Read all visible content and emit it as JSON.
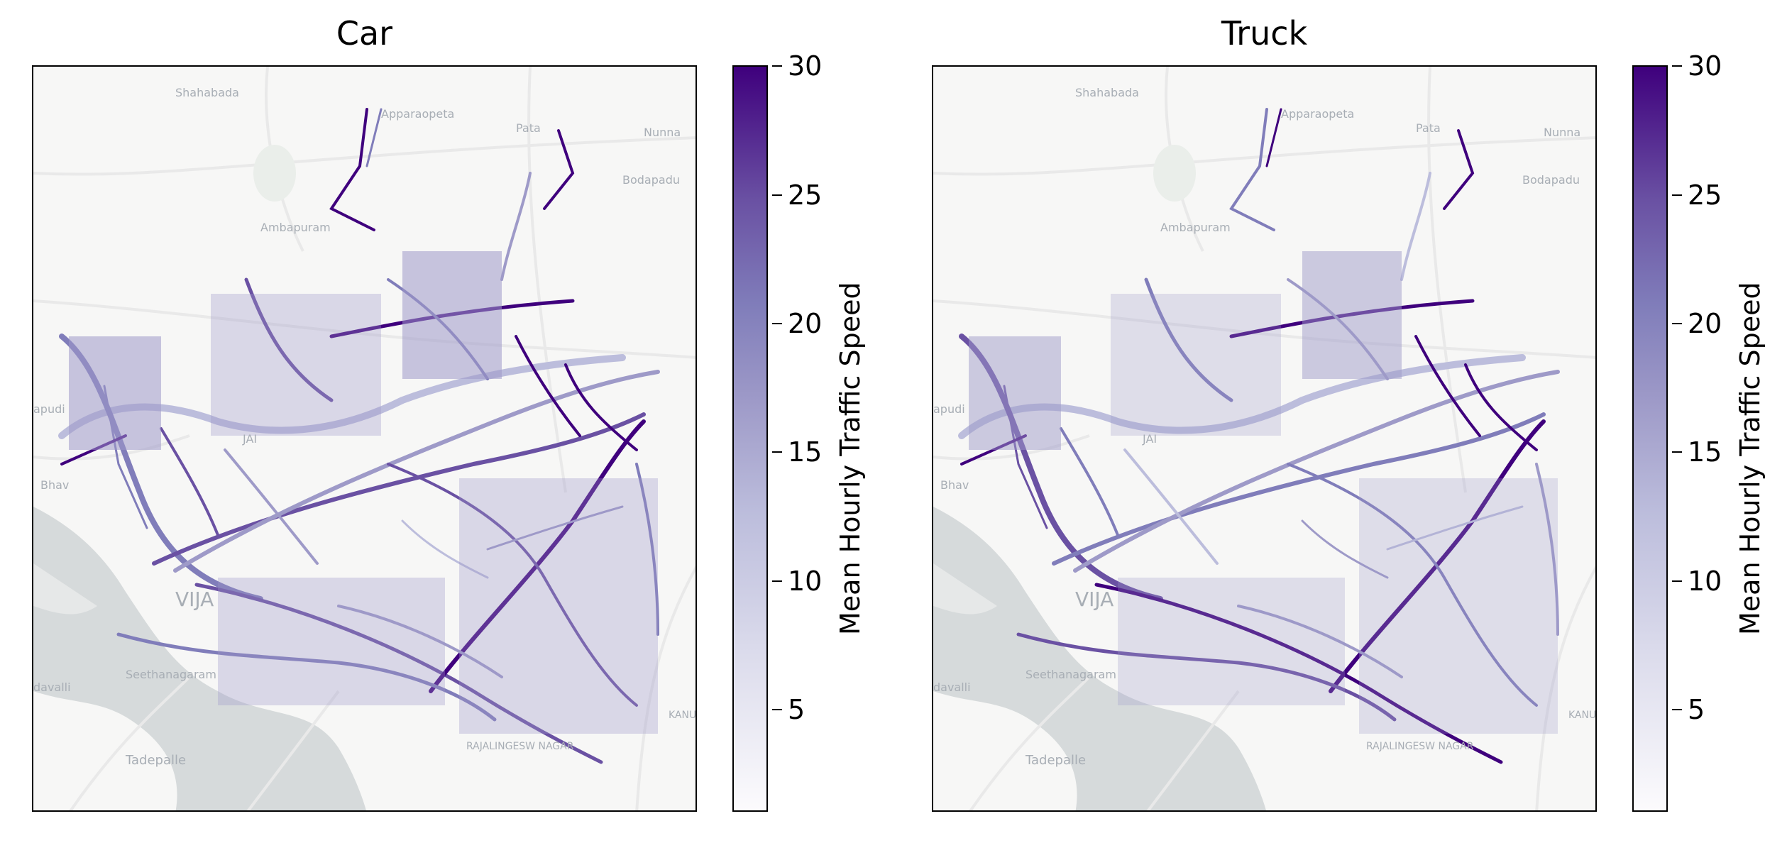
{
  "panels": [
    {
      "title": "Car",
      "place_labels": [
        "Shahabada",
        "Apparaopeta",
        "Pata",
        "Nunna",
        "Bodapadu",
        "Ambapuram",
        "apudi",
        "JAI",
        "Bhav",
        "VIJA",
        "Seethanagaram",
        "davalli",
        "Tadepalle",
        "RAJALINGESW NAGAR",
        "KANU"
      ],
      "colorbar": {
        "label": "Mean Hourly Traffic Speed",
        "ticks": [
          "5",
          "10",
          "15",
          "20",
          "25",
          "30"
        ],
        "range": [
          1,
          30
        ],
        "colormap": "Purples"
      }
    },
    {
      "title": "Truck",
      "place_labels": [
        "Shahabada",
        "Apparaopeta",
        "Pata",
        "Nunna",
        "Bodapadu",
        "Ambapuram",
        "apudi",
        "JAI",
        "Bhav",
        "VIJA",
        "Seethanagaram",
        "davalli",
        "Tadepalle",
        "RAJALINGESW NAGAR",
        "KANU"
      ],
      "colorbar": {
        "label": "Mean Hourly Traffic Speed",
        "ticks": [
          "5",
          "10",
          "15",
          "20",
          "25",
          "30"
        ],
        "range": [
          1,
          30
        ],
        "colormap": "Purples"
      }
    }
  ],
  "colors": {
    "land": "#f7f7f6",
    "water": "#d6dadb",
    "road_light": "#ebebeb",
    "speed_low": "#fcfbfd",
    "speed_mid": "#9e9ac8",
    "speed_high": "#3f007d"
  }
}
